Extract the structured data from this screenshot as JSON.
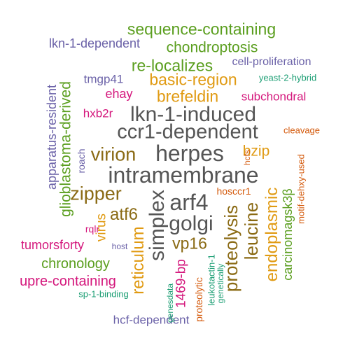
{
  "colors": {
    "green": "#5a9e1e",
    "purple": "#6b62a8",
    "orange": "#e09a12",
    "magenta": "#d4177c",
    "teal": "#1c9e74",
    "gray": "#555555",
    "brown": "#8a6a14",
    "rust": "#d45a0c"
  },
  "words": [
    {
      "text": "sequence-containing",
      "color": "green"
    },
    {
      "text": "lkn-1-dependent",
      "color": "purple"
    },
    {
      "text": "chondroptosis",
      "color": "green"
    },
    {
      "text": "re-localizes",
      "color": "green"
    },
    {
      "text": "cell-proliferation",
      "color": "purple"
    },
    {
      "text": "tmgp41",
      "color": "purple"
    },
    {
      "text": "basic-region",
      "color": "orange"
    },
    {
      "text": "yeast-2-hybrid",
      "color": "teal"
    },
    {
      "text": "ehay",
      "color": "magenta"
    },
    {
      "text": "brefeldin",
      "color": "orange"
    },
    {
      "text": "subchondral",
      "color": "magenta"
    },
    {
      "text": "hxb2r",
      "color": "magenta"
    },
    {
      "text": "lkn-1-induced",
      "color": "gray"
    },
    {
      "text": "ccr1-dependent",
      "color": "gray"
    },
    {
      "text": "cleavage",
      "color": "rust"
    },
    {
      "text": "virion",
      "color": "brown"
    },
    {
      "text": "herpes",
      "color": "gray"
    },
    {
      "text": "bzip",
      "color": "orange"
    },
    {
      "text": "intramembrane",
      "color": "gray"
    },
    {
      "text": "zipper",
      "color": "brown"
    },
    {
      "text": "arf4",
      "color": "gray"
    },
    {
      "text": "hosccr1",
      "color": "rust"
    },
    {
      "text": "atf6",
      "color": "brown"
    },
    {
      "text": "golgi",
      "color": "gray"
    },
    {
      "text": "virus",
      "color": "orange"
    },
    {
      "text": "rqlr",
      "color": "magenta"
    },
    {
      "text": "vp16",
      "color": "brown"
    },
    {
      "text": "tumorsforty",
      "color": "magenta"
    },
    {
      "text": "host",
      "color": "purple"
    },
    {
      "text": "chronology",
      "color": "green"
    },
    {
      "text": "upre-containing",
      "color": "magenta"
    },
    {
      "text": "sp-1-binding",
      "color": "teal"
    },
    {
      "text": "hcf-dependent",
      "color": "purple"
    },
    {
      "text": "apparatus-resident",
      "color": "purple"
    },
    {
      "text": "glioblastoma-derived",
      "color": "green"
    },
    {
      "text": "roach",
      "color": "purple"
    },
    {
      "text": "hcfs",
      "color": "rust"
    },
    {
      "text": "simplex",
      "color": "gray"
    },
    {
      "text": "reticulum",
      "color": "orange"
    },
    {
      "text": "1469-bp",
      "color": "magenta"
    },
    {
      "text": "genesdata",
      "color": "teal"
    },
    {
      "text": "proteolytic",
      "color": "rust"
    },
    {
      "text": "leukotactin-1",
      "color": "teal"
    },
    {
      "text": "genetically",
      "color": "teal"
    },
    {
      "text": "proteolysis",
      "color": "brown"
    },
    {
      "text": "leucine",
      "color": "brown"
    },
    {
      "text": "endoplasmic",
      "color": "orange"
    },
    {
      "text": "carcinomagsk3β",
      "color": "green"
    },
    {
      "text": "motif-dehxy-used",
      "color": "rust"
    }
  ]
}
